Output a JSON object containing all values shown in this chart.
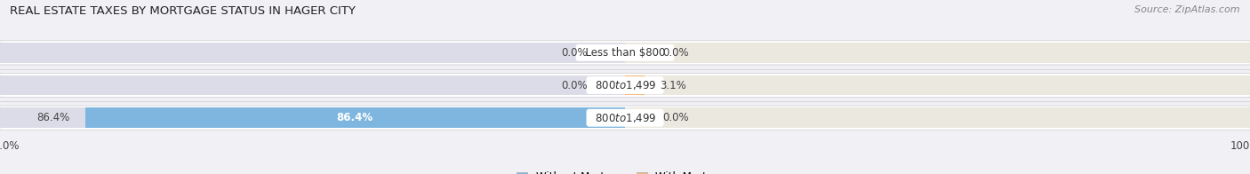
{
  "title": "REAL ESTATE TAXES BY MORTGAGE STATUS IN HAGER CITY",
  "source": "Source: ZipAtlas.com",
  "rows": [
    {
      "label": "Less than $800",
      "without_mortgage": 0.0,
      "with_mortgage": 0.0
    },
    {
      "label": "$800 to $1,499",
      "without_mortgage": 0.0,
      "with_mortgage": 3.1
    },
    {
      "label": "$800 to $1,499",
      "without_mortgage": 86.4,
      "with_mortgage": 0.0
    }
  ],
  "xlim": 100.0,
  "color_without": "#7eb6e0",
  "color_with": "#f5b97a",
  "color_bar_bg_left": "#dcdce8",
  "color_bar_bg_right": "#ebe8e0",
  "color_row_bg": "#f5f5f8",
  "bar_height": 0.62,
  "title_fontsize": 9.5,
  "source_fontsize": 8,
  "label_fontsize": 8.5,
  "tick_fontsize": 8.5,
  "legend_fontsize": 8.5,
  "background_color": "#f0f0f5"
}
